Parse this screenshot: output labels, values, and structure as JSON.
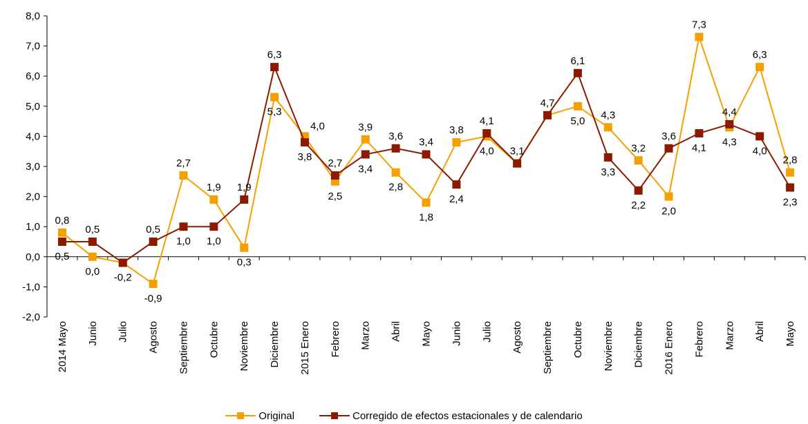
{
  "chart_data": {
    "type": "line",
    "title": "",
    "xlabel": "",
    "ylabel": "",
    "ylim": [
      -2.0,
      8.0
    ],
    "yticks": [
      "-2,0",
      "-1,0",
      "0,0",
      "1,0",
      "2,0",
      "3,0",
      "4,0",
      "5,0",
      "6,0",
      "7,0",
      "8,0"
    ],
    "grid": false,
    "legend_position": "bottom",
    "categories": [
      "2014 Mayo",
      "Junio",
      "Julio",
      "Agosto",
      "Septiembre",
      "Octubre",
      "Noviembre",
      "Diciembre",
      "2015 Enero",
      "Febrero",
      "Marzo",
      "Abril",
      "Mayo",
      "Junio",
      "Julio",
      "Agosto",
      "Septiembre",
      "Octubre",
      "Noviembre",
      "Diciembre",
      "2016 Enero",
      "Febrero",
      "Marzo",
      "Abril",
      "Mayo"
    ],
    "series": [
      {
        "name": "Original",
        "color": "#F5A000",
        "values": [
          0.8,
          0.0,
          -0.2,
          -0.9,
          2.7,
          1.9,
          0.3,
          5.3,
          4.0,
          2.5,
          3.9,
          2.8,
          1.8,
          3.8,
          4.0,
          3.1,
          4.7,
          5.0,
          4.3,
          3.2,
          2.0,
          7.3,
          4.3,
          6.3,
          2.8
        ],
        "labels": [
          "0,8",
          "0,0",
          "-0,2",
          "-0,9",
          "2,7",
          "1,9",
          "0,3",
          "5,3",
          "4,0",
          "2,5",
          "3,9",
          "2,8",
          "1,8",
          "3,8",
          "4,0",
          "3,1",
          "4,7",
          "5,0",
          "4,3",
          "3,2",
          "2,0",
          "7,3",
          "4,3",
          "6,3",
          "2,8"
        ]
      },
      {
        "name": "Corregido de efectos estacionales y de calendario",
        "color": "#8B1A00",
        "values": [
          0.5,
          0.5,
          -0.2,
          0.5,
          1.0,
          1.0,
          1.9,
          6.3,
          3.8,
          2.7,
          3.4,
          3.6,
          3.4,
          2.4,
          4.1,
          3.1,
          4.7,
          6.1,
          3.3,
          2.2,
          3.6,
          4.1,
          4.4,
          4.0,
          2.3
        ],
        "labels": [
          "0,5",
          "0,5",
          "-0,2",
          "0,5",
          "1,0",
          "1,0",
          "1,9",
          "6,3",
          "3,8",
          "2,7",
          "3,4",
          "3,6",
          "3,4",
          "2,4",
          "4,1",
          "3,1",
          "4,7",
          "6,1",
          "3,3",
          "2,2",
          "3,6",
          "4,1",
          "4,4",
          "4,0",
          "2,3"
        ]
      }
    ],
    "data_labels": [
      {
        "text": "0,8",
        "series": 0,
        "index": 0,
        "pos": "above"
      },
      {
        "text": "0,5",
        "series": 1,
        "index": 0,
        "pos": "below"
      },
      {
        "text": "0,5",
        "series": 1,
        "index": 1,
        "pos": "above"
      },
      {
        "text": "0,0",
        "series": 0,
        "index": 1,
        "pos": "below"
      },
      {
        "text": "-0,2",
        "series": 0,
        "index": 2,
        "pos": "below"
      },
      {
        "text": "0,5",
        "series": 1,
        "index": 3,
        "pos": "above"
      },
      {
        "text": "-0,9",
        "series": 0,
        "index": 3,
        "pos": "below"
      },
      {
        "text": "2,7",
        "series": 0,
        "index": 4,
        "pos": "above"
      },
      {
        "text": "1,0",
        "series": 1,
        "index": 4,
        "pos": "below"
      },
      {
        "text": "1,9",
        "series": 0,
        "index": 5,
        "pos": "above"
      },
      {
        "text": "1,0",
        "series": 1,
        "index": 5,
        "pos": "below"
      },
      {
        "text": "1,9",
        "series": 1,
        "index": 6,
        "pos": "above"
      },
      {
        "text": "0,3",
        "series": 0,
        "index": 6,
        "pos": "below"
      },
      {
        "text": "6,3",
        "series": 1,
        "index": 7,
        "pos": "above"
      },
      {
        "text": "5,3",
        "series": 0,
        "index": 7,
        "pos": "below"
      },
      {
        "text": "4,0",
        "series": 0,
        "index": 8,
        "pos": "right"
      },
      {
        "text": "3,8",
        "series": 1,
        "index": 8,
        "pos": "below"
      },
      {
        "text": "2,7",
        "series": 1,
        "index": 9,
        "pos": "above"
      },
      {
        "text": "2,5",
        "series": 0,
        "index": 9,
        "pos": "below"
      },
      {
        "text": "3,9",
        "series": 0,
        "index": 10,
        "pos": "above"
      },
      {
        "text": "3,4",
        "series": 1,
        "index": 10,
        "pos": "below"
      },
      {
        "text": "3,6",
        "series": 1,
        "index": 11,
        "pos": "above"
      },
      {
        "text": "2,8",
        "series": 0,
        "index": 11,
        "pos": "below"
      },
      {
        "text": "3,4",
        "series": 1,
        "index": 12,
        "pos": "above"
      },
      {
        "text": "1,8",
        "series": 0,
        "index": 12,
        "pos": "below"
      },
      {
        "text": "3,8",
        "series": 0,
        "index": 13,
        "pos": "above"
      },
      {
        "text": "2,4",
        "series": 1,
        "index": 13,
        "pos": "below"
      },
      {
        "text": "4,1",
        "series": 1,
        "index": 14,
        "pos": "above"
      },
      {
        "text": "4,0",
        "series": 0,
        "index": 14,
        "pos": "below"
      },
      {
        "text": "3,1",
        "series": 0,
        "index": 15,
        "pos": "above"
      },
      {
        "text": "4,7",
        "series": 0,
        "index": 16,
        "pos": "above"
      },
      {
        "text": "6,1",
        "series": 1,
        "index": 17,
        "pos": "above"
      },
      {
        "text": "5,0",
        "series": 0,
        "index": 17,
        "pos": "below"
      },
      {
        "text": "4,3",
        "series": 0,
        "index": 18,
        "pos": "above"
      },
      {
        "text": "3,3",
        "series": 1,
        "index": 18,
        "pos": "below"
      },
      {
        "text": "3,2",
        "series": 0,
        "index": 19,
        "pos": "above"
      },
      {
        "text": "2,2",
        "series": 1,
        "index": 19,
        "pos": "below"
      },
      {
        "text": "3,6",
        "series": 1,
        "index": 20,
        "pos": "above"
      },
      {
        "text": "2,0",
        "series": 0,
        "index": 20,
        "pos": "below"
      },
      {
        "text": "7,3",
        "series": 0,
        "index": 21,
        "pos": "above"
      },
      {
        "text": "4,1",
        "series": 1,
        "index": 21,
        "pos": "below"
      },
      {
        "text": "4,4",
        "series": 1,
        "index": 22,
        "pos": "above"
      },
      {
        "text": "4,3",
        "series": 0,
        "index": 22,
        "pos": "below"
      },
      {
        "text": "6,3",
        "series": 0,
        "index": 23,
        "pos": "above"
      },
      {
        "text": "4,0",
        "series": 1,
        "index": 23,
        "pos": "below"
      },
      {
        "text": "2,8",
        "series": 0,
        "index": 24,
        "pos": "above"
      },
      {
        "text": "2,3",
        "series": 1,
        "index": 24,
        "pos": "below"
      }
    ]
  },
  "legend": {
    "items": [
      {
        "label": "Original",
        "color": "#F5A000"
      },
      {
        "label": "Corregido de efectos estacionales y de calendario",
        "color": "#8B1A00"
      }
    ]
  }
}
